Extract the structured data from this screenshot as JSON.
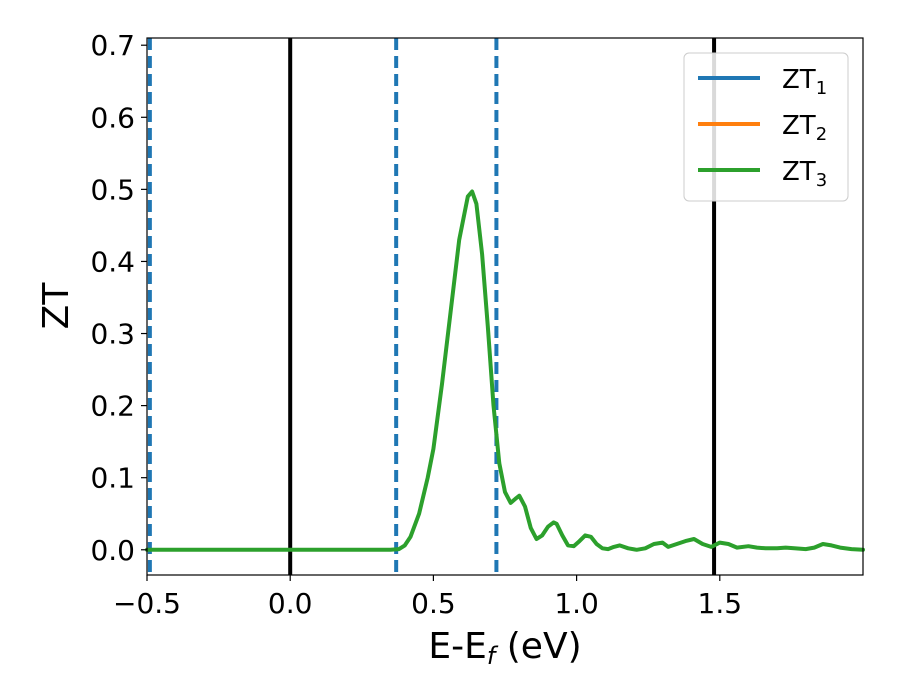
{
  "chart_data": {
    "type": "line",
    "xlabel": {
      "main": "E-E",
      "sub": "f",
      "unit": " (eV)"
    },
    "ylabel": "ZT",
    "xlim": [
      -0.5,
      2.0
    ],
    "ylim": [
      -0.035,
      0.71
    ],
    "x_ticks": [
      -0.5,
      0.0,
      0.5,
      1.0,
      1.5
    ],
    "x_tick_labels": [
      "−0.5",
      "0.0",
      "0.5",
      "1.0",
      "1.5"
    ],
    "y_ticks": [
      0.0,
      0.1,
      0.2,
      0.3,
      0.4,
      0.5,
      0.6,
      0.7
    ],
    "y_tick_labels": [
      "0.0",
      "0.1",
      "0.2",
      "0.3",
      "0.4",
      "0.5",
      "0.6",
      "0.7"
    ],
    "legend_position": "top-right",
    "grid": false,
    "series": [
      {
        "name": "ZT",
        "sub": "1",
        "color": "#1f77b4"
      },
      {
        "name": "ZT",
        "sub": "2",
        "color": "#ff7f0e"
      },
      {
        "name": "ZT",
        "sub": "3",
        "color": "#2ca02c"
      }
    ],
    "curve": {
      "color": "#2ca02c",
      "x": [
        -0.5,
        -0.3,
        0.0,
        0.2,
        0.3,
        0.35,
        0.38,
        0.4,
        0.42,
        0.45,
        0.48,
        0.5,
        0.53,
        0.56,
        0.59,
        0.62,
        0.635,
        0.65,
        0.67,
        0.69,
        0.71,
        0.73,
        0.75,
        0.77,
        0.79,
        0.8,
        0.82,
        0.84,
        0.86,
        0.88,
        0.9,
        0.92,
        0.93,
        0.95,
        0.97,
        0.99,
        1.01,
        1.03,
        1.05,
        1.07,
        1.09,
        1.11,
        1.13,
        1.15,
        1.18,
        1.21,
        1.24,
        1.27,
        1.3,
        1.32,
        1.35,
        1.38,
        1.41,
        1.44,
        1.47,
        1.5,
        1.53,
        1.56,
        1.6,
        1.63,
        1.66,
        1.7,
        1.73,
        1.76,
        1.8,
        1.83,
        1.86,
        1.89,
        1.92,
        1.96,
        2.0
      ],
      "y": [
        0.0,
        0.0,
        0.0,
        0.0,
        0.0,
        0.0,
        0.001,
        0.006,
        0.018,
        0.05,
        0.1,
        0.14,
        0.23,
        0.33,
        0.43,
        0.49,
        0.497,
        0.48,
        0.41,
        0.31,
        0.2,
        0.12,
        0.08,
        0.065,
        0.072,
        0.075,
        0.06,
        0.03,
        0.015,
        0.02,
        0.032,
        0.038,
        0.036,
        0.02,
        0.006,
        0.005,
        0.012,
        0.02,
        0.018,
        0.008,
        0.002,
        0.001,
        0.004,
        0.006,
        0.002,
        0.0,
        0.002,
        0.008,
        0.01,
        0.004,
        0.008,
        0.012,
        0.015,
        0.008,
        0.004,
        0.01,
        0.008,
        0.003,
        0.005,
        0.003,
        0.002,
        0.002,
        0.003,
        0.002,
        0.001,
        0.003,
        0.008,
        0.006,
        0.003,
        0.001,
        0.0
      ]
    },
    "vlines": [
      {
        "x": -0.49,
        "style": "dashed",
        "color": "#1f77b4"
      },
      {
        "x": 0.0,
        "style": "solid",
        "color": "#000000"
      },
      {
        "x": 0.37,
        "style": "dashed",
        "color": "#1f77b4"
      },
      {
        "x": 0.72,
        "style": "dashed",
        "color": "#1f77b4"
      },
      {
        "x": 1.48,
        "style": "solid",
        "color": "#000000"
      }
    ]
  }
}
